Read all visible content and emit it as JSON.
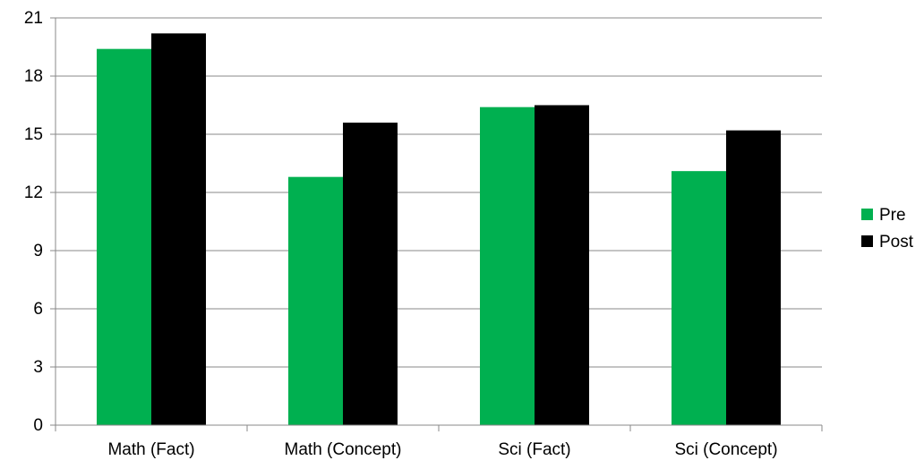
{
  "chart_data": {
    "type": "bar",
    "categories": [
      "Math (Fact)",
      "Math (Concept)",
      "Sci (Fact)",
      "Sci (Concept)"
    ],
    "series": [
      {
        "name": "Pre",
        "color": "#00b050",
        "values": [
          19.4,
          12.8,
          16.4,
          13.1
        ]
      },
      {
        "name": "Post",
        "color": "#000000",
        "values": [
          20.2,
          15.6,
          16.5,
          15.2
        ]
      }
    ],
    "y_ticks": [
      "0",
      "3",
      "6",
      "9",
      "12",
      "15",
      "18",
      "21"
    ],
    "ylim": [
      0,
      21
    ],
    "grid": true,
    "legend_position": "right",
    "title": "",
    "xlabel": "",
    "ylabel": ""
  }
}
